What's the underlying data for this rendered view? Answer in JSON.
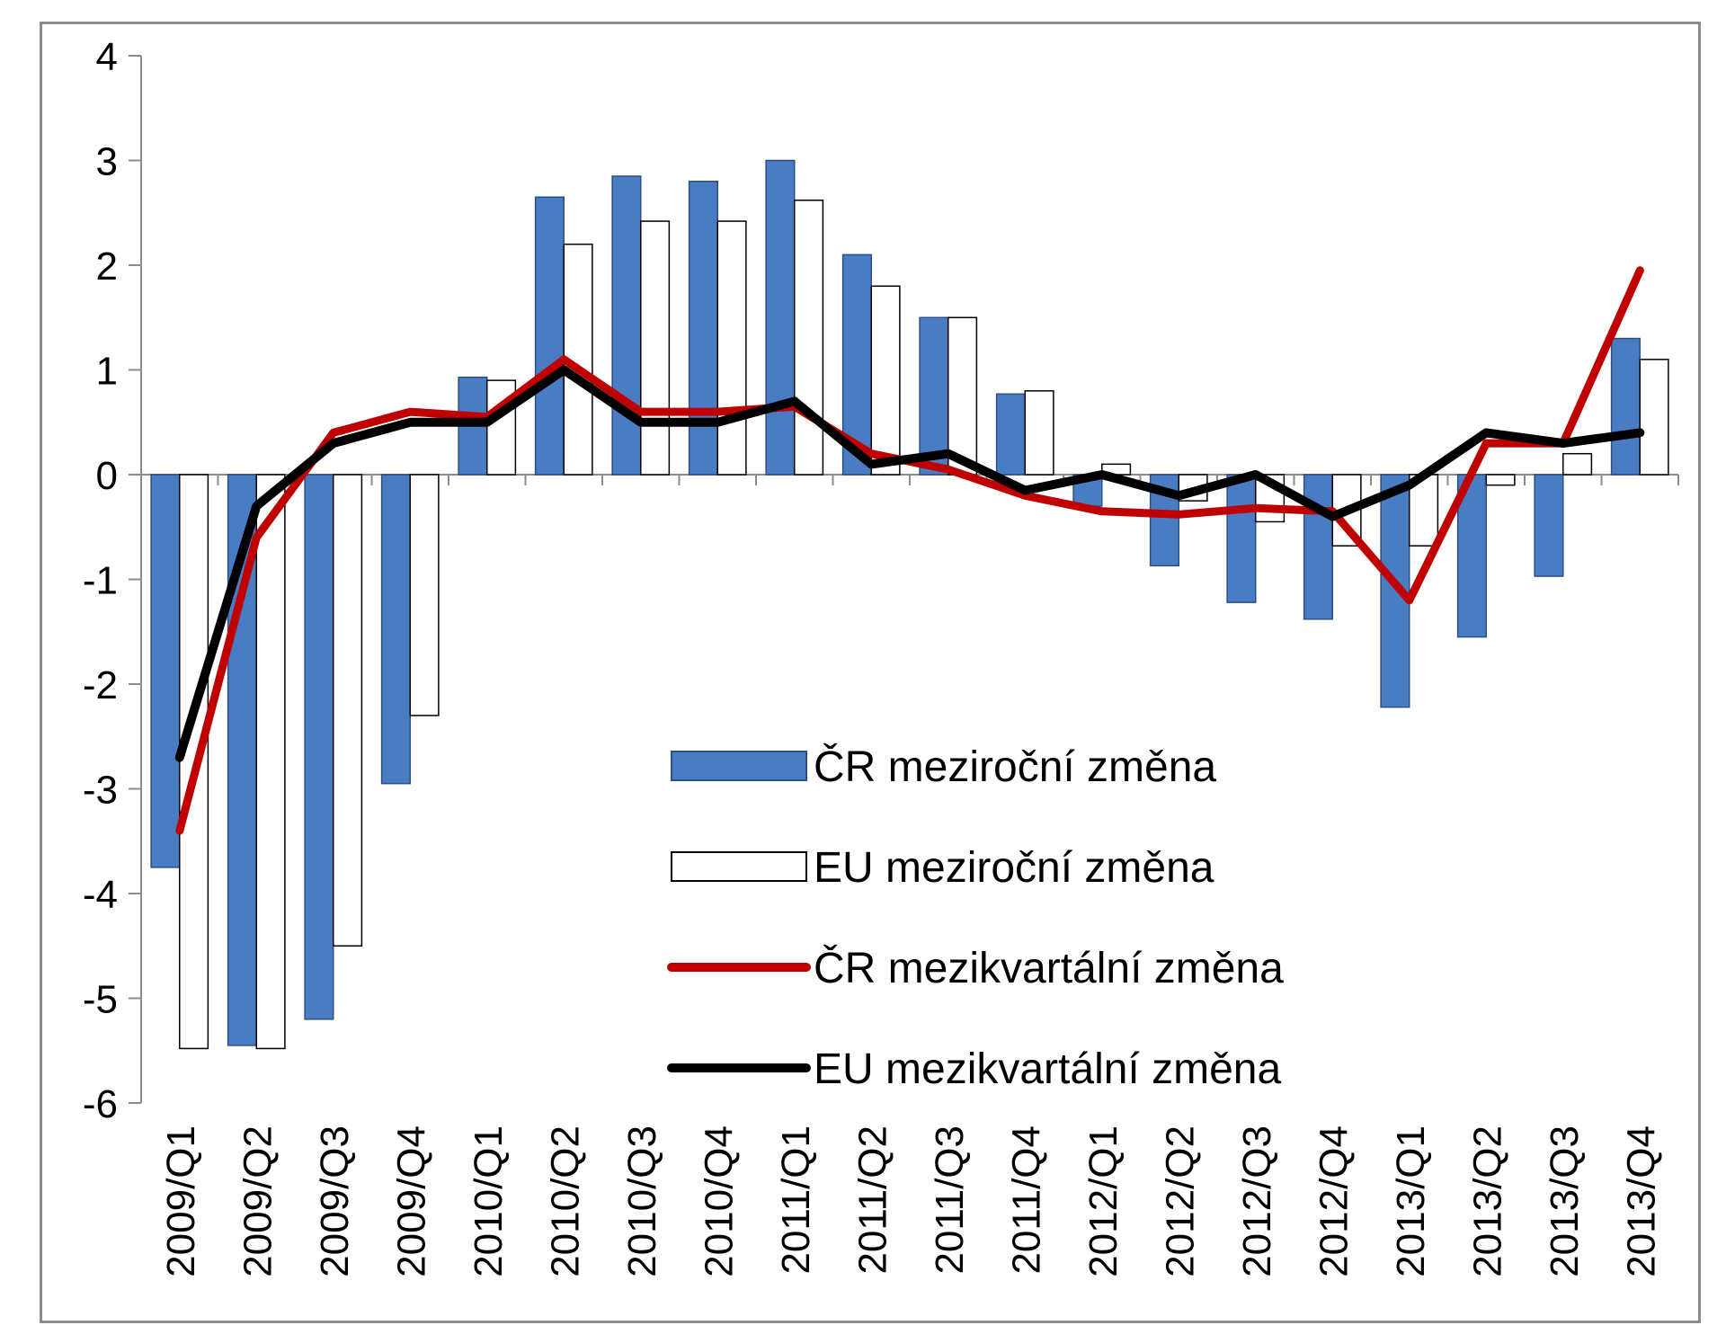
{
  "chart_data": {
    "type": "bar",
    "title": "",
    "xlabel": "",
    "ylabel": "",
    "ylim": [
      -6,
      4
    ],
    "yticks": [
      4,
      3,
      2,
      1,
      0,
      -1,
      -2,
      -3,
      -4,
      -5,
      -6
    ],
    "yticks_text": [
      "4",
      "3",
      "2",
      "1",
      "0",
      "-1",
      "-2",
      "-3",
      "-4",
      "-5",
      "-6"
    ],
    "grid": false,
    "legend_position": "bottom-center inside plot",
    "categories": [
      "2009/Q1",
      "2009/Q2",
      "2009/Q3",
      "2009/Q4",
      "2010/Q1",
      "2010/Q2",
      "2010/Q3",
      "2010/Q4",
      "2011/Q1",
      "2011/Q2",
      "2011/Q3",
      "2011/Q4",
      "2012/Q1",
      "2012/Q2",
      "2012/Q3",
      "2012/Q4",
      "2013/Q1",
      "2013/Q2",
      "2013/Q3",
      "2013/Q4"
    ],
    "series": [
      {
        "name": "ČR meziroční změna",
        "kind": "bar",
        "color": "#4a7cc4",
        "values": [
          -3.75,
          -5.45,
          -5.2,
          -2.95,
          0.93,
          2.65,
          2.85,
          2.8,
          3.0,
          2.1,
          1.5,
          0.77,
          -0.3,
          -0.87,
          -1.22,
          -1.38,
          -2.22,
          -1.55,
          -0.97,
          1.3
        ]
      },
      {
        "name": "EU meziroční změna",
        "kind": "bar",
        "color": "#ffffff",
        "values": [
          -5.48,
          -5.48,
          -4.5,
          -2.3,
          0.9,
          2.2,
          2.42,
          2.42,
          2.62,
          1.8,
          1.5,
          0.8,
          0.1,
          -0.25,
          -0.45,
          -0.68,
          -0.68,
          -0.1,
          0.2,
          1.1
        ]
      },
      {
        "name": "ČR mezikvartální změna",
        "kind": "line",
        "color": "#c00000",
        "values": [
          -3.4,
          -0.6,
          0.4,
          0.6,
          0.55,
          1.1,
          0.6,
          0.6,
          0.65,
          0.2,
          0.05,
          -0.2,
          -0.35,
          -0.38,
          -0.32,
          -0.35,
          -1.2,
          0.3,
          0.3,
          1.95
        ]
      },
      {
        "name": "EU mezikvartální změna",
        "kind": "line",
        "color": "#000000",
        "values": [
          -2.7,
          -0.3,
          0.3,
          0.5,
          0.5,
          1.0,
          0.5,
          0.5,
          0.7,
          0.1,
          0.2,
          -0.15,
          0.0,
          -0.2,
          0.0,
          -0.4,
          -0.1,
          0.4,
          0.3,
          0.4
        ]
      }
    ]
  }
}
